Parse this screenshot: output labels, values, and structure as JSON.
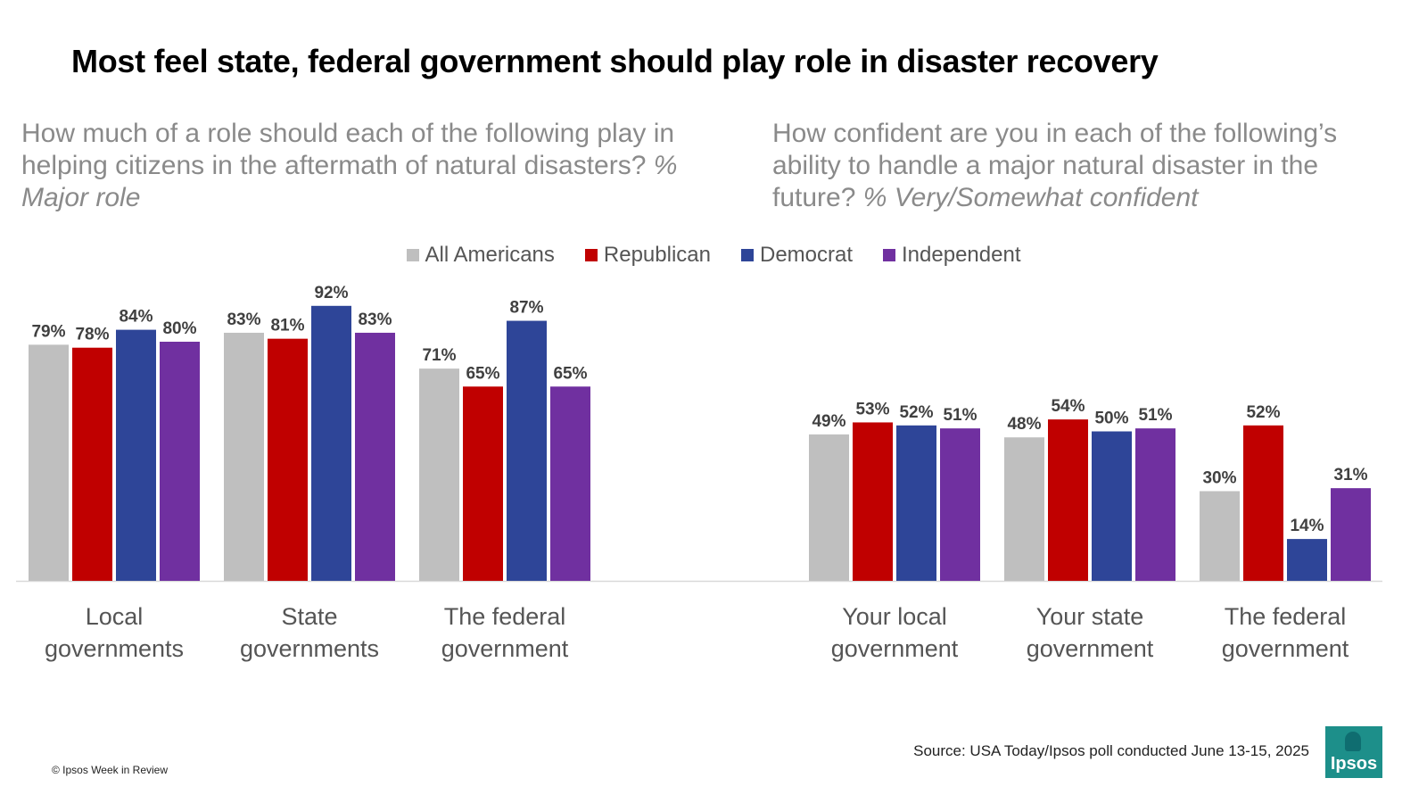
{
  "title": "Most feel state, federal government should play role in disaster recovery",
  "left_question": {
    "text": "How much of a role should each of the following play in helping citizens in the aftermath of natural disasters?",
    "qualifier": "% Major role"
  },
  "right_question": {
    "text": "How confident are you in each of the following’s ability to handle a major natural disaster in the future?",
    "qualifier": "% Very/Somewhat confident"
  },
  "legend": [
    {
      "label": "All Americans",
      "color": "#bfbfbf"
    },
    {
      "label": "Republican",
      "color": "#c00000"
    },
    {
      "label": "Democrat",
      "color": "#2e4598"
    },
    {
      "label": "Independent",
      "color": "#7030a0"
    }
  ],
  "chart_data": {
    "type": "bar",
    "ylim": [
      0,
      100
    ],
    "grid": false,
    "legend_position": "top-center",
    "series_names": [
      "All Americans",
      "Republican",
      "Democrat",
      "Independent"
    ],
    "colors": [
      "#bfbfbf",
      "#c00000",
      "#2e4598",
      "#7030a0"
    ],
    "groups": [
      {
        "panel": "left",
        "label": [
          "Local",
          "governments"
        ],
        "values": [
          79,
          78,
          84,
          80
        ],
        "value_labels": [
          "79%",
          "78%",
          "84%",
          "80%"
        ]
      },
      {
        "panel": "left",
        "label": [
          "State",
          "governments"
        ],
        "values": [
          83,
          81,
          92,
          83
        ],
        "value_labels": [
          "83%",
          "81%",
          "92%",
          "83%"
        ]
      },
      {
        "panel": "left",
        "label": [
          "The federal",
          "government"
        ],
        "values": [
          71,
          65,
          87,
          65
        ],
        "value_labels": [
          "71%",
          "65%",
          "87%",
          "65%"
        ]
      },
      {
        "panel": "right",
        "label": [
          "Your local",
          "government"
        ],
        "values": [
          49,
          53,
          52,
          51
        ],
        "value_labels": [
          "49%",
          "53%",
          "52%",
          "51%"
        ]
      },
      {
        "panel": "right",
        "label": [
          "Your state",
          "government"
        ],
        "values": [
          48,
          54,
          50,
          51
        ],
        "value_labels": [
          "48%",
          "54%",
          "50%",
          "51%"
        ]
      },
      {
        "panel": "right",
        "label": [
          "The federal",
          "government"
        ],
        "values": [
          30,
          52,
          14,
          31
        ],
        "value_labels": [
          "30%",
          "52%",
          "14%",
          "31%"
        ]
      }
    ]
  },
  "source": "Source: USA Today/Ipsos poll conducted June 13-15, 2025",
  "copyright": "© Ipsos Week in Review",
  "logo_text": "Ipsos"
}
